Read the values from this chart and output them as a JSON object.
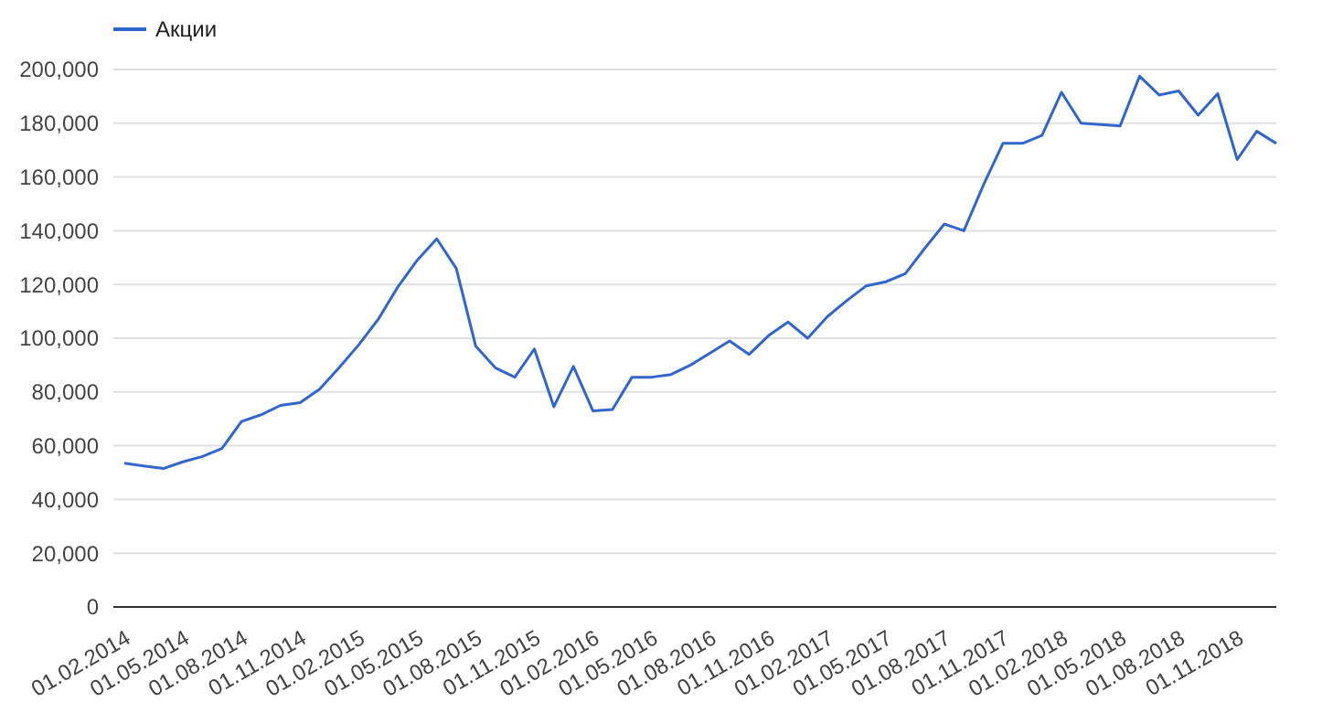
{
  "chart_data": {
    "type": "line",
    "legend": "top left",
    "grid": "y",
    "categories": [
      "01.02.2014",
      null,
      null,
      "01.05.2014",
      null,
      null,
      "01.08.2014",
      null,
      null,
      "01.11.2014",
      null,
      null,
      "01.02.2015",
      null,
      null,
      "01.05.2015",
      null,
      null,
      "01.08.2015",
      null,
      null,
      "01.11.2015",
      null,
      null,
      "01.02.2016",
      null,
      null,
      "01.05.2016",
      null,
      null,
      "01.08.2016",
      null,
      null,
      "01.11.2016",
      null,
      null,
      "01.02.2017",
      null,
      null,
      "01.05.2017",
      null,
      null,
      "01.08.2017",
      null,
      null,
      "01.11.2017",
      null,
      null,
      "01.02.2018",
      null,
      null,
      "01.05.2018",
      null,
      null,
      "01.08.2018",
      null,
      null,
      "01.11.2018",
      null,
      null
    ],
    "series": [
      {
        "name": "Акции",
        "color": "#3366cc",
        "values": [
          53500,
          52500,
          51500,
          54000,
          56000,
          59000,
          69000,
          71500,
          75000,
          76000,
          81000,
          89000,
          97500,
          107000,
          119000,
          129000,
          137000,
          126000,
          97000,
          89000,
          85500,
          96000,
          74500,
          89500,
          73000,
          73500,
          85500,
          85500,
          86500,
          90000,
          94500,
          99000,
          94000,
          101000,
          106000,
          100000,
          108000,
          114000,
          119500,
          121000,
          124000,
          133500,
          142500,
          140000,
          157000,
          172500,
          172500,
          175500,
          191500,
          180000,
          179500,
          179000,
          197500,
          190500,
          192000,
          183000,
          191000,
          166500,
          177000,
          172500
        ]
      }
    ],
    "ylim": [
      0,
      200000
    ],
    "yticks": [
      {
        "value": 0,
        "label": "0"
      },
      {
        "value": 20000,
        "label": "20,000"
      },
      {
        "value": 40000,
        "label": "40,000"
      },
      {
        "value": 60000,
        "label": "60,000"
      },
      {
        "value": 80000,
        "label": "80,000"
      },
      {
        "value": 100000,
        "label": "100,000"
      },
      {
        "value": 120000,
        "label": "120,000"
      },
      {
        "value": 140000,
        "label": "140,000"
      },
      {
        "value": 160000,
        "label": "160,000"
      },
      {
        "value": 180000,
        "label": "180,000"
      },
      {
        "value": 200000,
        "label": "200,000"
      }
    ]
  }
}
